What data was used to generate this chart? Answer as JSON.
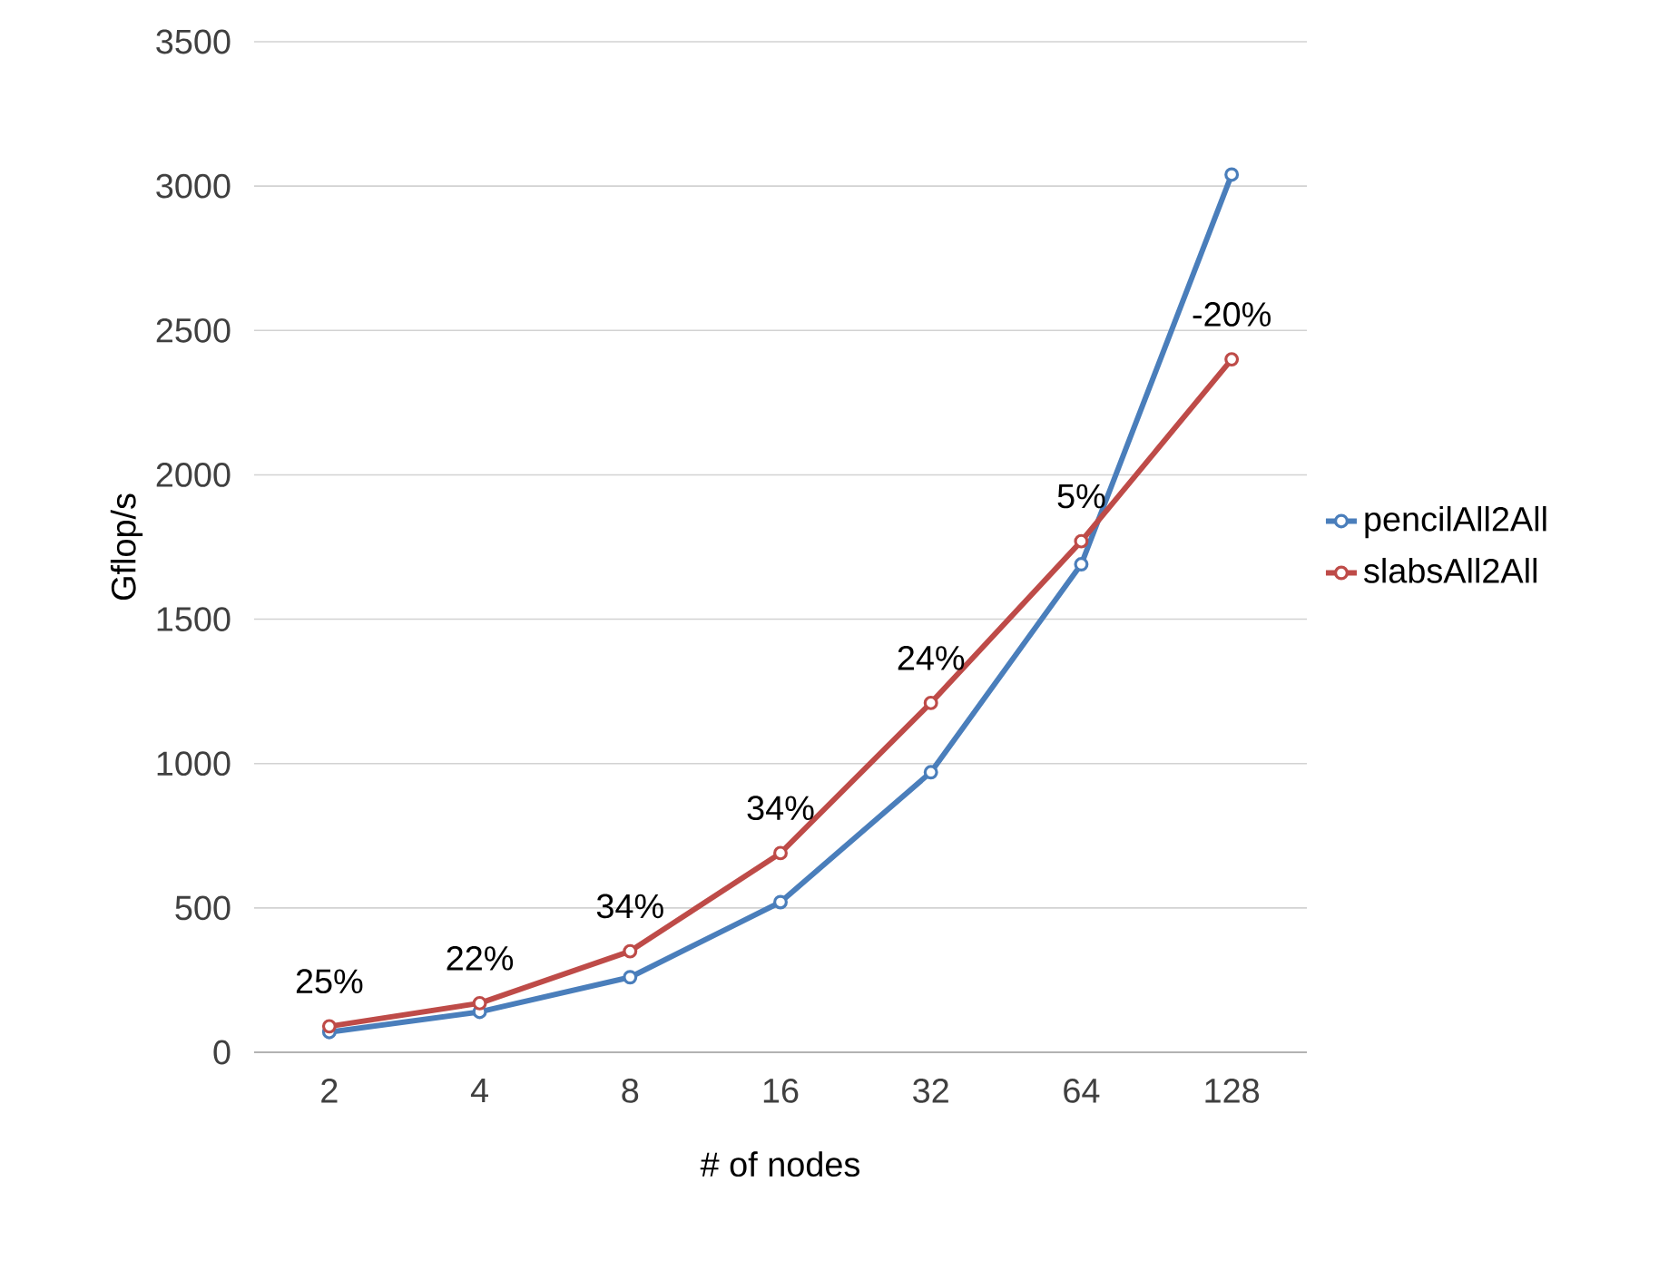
{
  "chart_data": {
    "type": "line",
    "xlabel": "# of nodes",
    "ylabel": "Gflop/s",
    "categories": [
      "2",
      "4",
      "8",
      "16",
      "32",
      "64",
      "128"
    ],
    "series": [
      {
        "name": "pencilAll2All",
        "color": "#4a7ebb",
        "values": [
          70,
          140,
          260,
          520,
          970,
          1690,
          3040
        ]
      },
      {
        "name": "slabsAll2All",
        "color": "#be4b48",
        "values": [
          90,
          170,
          350,
          690,
          1210,
          1770,
          2400
        ]
      }
    ],
    "ylim": [
      0,
      3500
    ],
    "yticks": [
      0,
      500,
      1000,
      1500,
      2000,
      2500,
      3000,
      3500
    ],
    "grid": "y",
    "legend": "right",
    "marker": "circle",
    "line_style": "solid",
    "annotations": [
      {
        "text": "25%",
        "x": "2",
        "y": 90
      },
      {
        "text": "22%",
        "x": "4",
        "y": 170
      },
      {
        "text": "34%",
        "x": "8",
        "y": 350
      },
      {
        "text": "34%",
        "x": "16",
        "y": 690
      },
      {
        "text": "24%",
        "x": "32",
        "y": 1210
      },
      {
        "text": "5%",
        "x": "64",
        "y": 1770
      },
      {
        "text": "-20%",
        "x": "128",
        "y": 2400
      }
    ]
  }
}
